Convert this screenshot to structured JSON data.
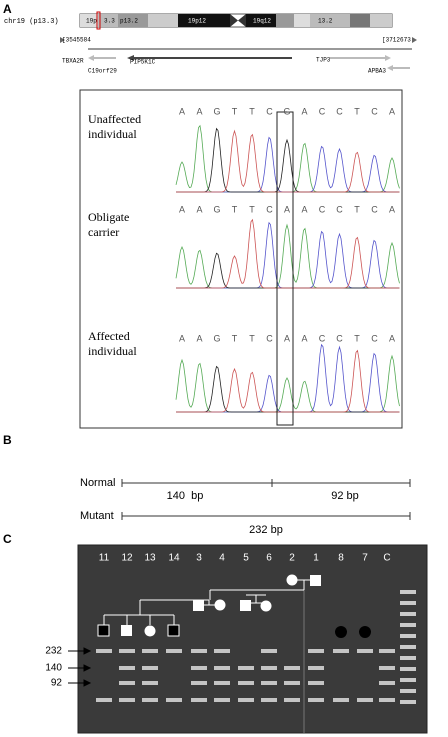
{
  "panels": {
    "a": "A",
    "b": "B",
    "c": "C"
  },
  "ideogram": {
    "chrom": "chr19 (p13.3)",
    "bands": [
      "19p",
      "3.3",
      "p13.2",
      "19p12",
      "19q12",
      "13.2"
    ],
    "start": "[3545584",
    "end": "[3712673"
  },
  "genes": [
    "TBXA2R",
    "PIP5K1C",
    "TJP3",
    "C19orf29",
    "APBA3"
  ],
  "sequencing": [
    {
      "label": [
        "Unaffected",
        "individual"
      ],
      "bases": [
        "A",
        "A",
        "G",
        "T",
        "T",
        "C",
        "G",
        "A",
        "C",
        "C",
        "T",
        "C",
        "A"
      ]
    },
    {
      "label": [
        "Obligate",
        "carrier"
      ],
      "bases": [
        "A",
        "A",
        "G",
        "T",
        "T",
        "C",
        "A",
        "A",
        "C",
        "C",
        "T",
        "C",
        "A"
      ]
    },
    {
      "label": [
        "Affected",
        "individual"
      ],
      "bases": [
        "A",
        "A",
        "G",
        "T",
        "T",
        "C",
        "A",
        "A",
        "C",
        "C",
        "T",
        "C",
        "A"
      ]
    }
  ],
  "fragments": {
    "normal": "Normal",
    "normal_parts": [
      "140  bp",
      "92 bp"
    ],
    "mutant": "Mutant",
    "mutant_part": "232 bp"
  },
  "gel": {
    "lanes": [
      "11",
      "12",
      "13",
      "14",
      "3",
      "4",
      "5",
      "6",
      "2",
      "1",
      "8",
      "7",
      "C"
    ],
    "sizes": [
      "232",
      "140",
      "92"
    ]
  }
}
